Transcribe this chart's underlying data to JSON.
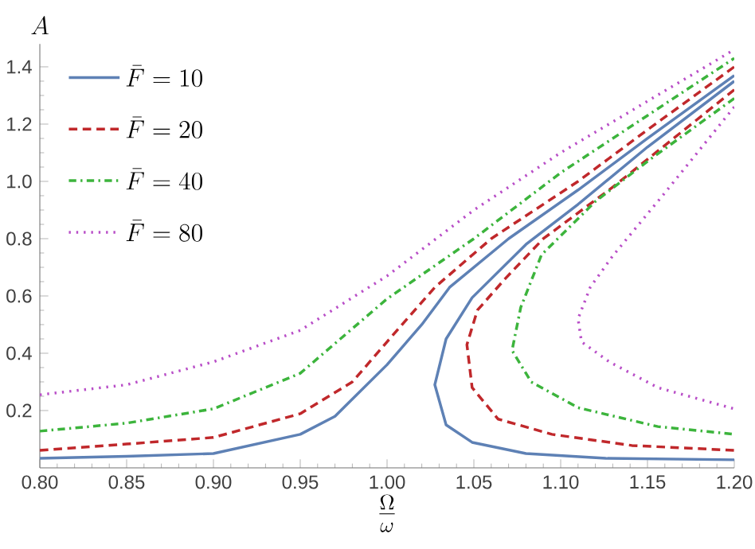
{
  "chart_data": {
    "type": "line",
    "xlabel": "\\frac{\\Omega}{\\omega}",
    "ylabel": "A",
    "xlim": [
      0.8,
      1.2
    ],
    "ylim": [
      0,
      1.48
    ],
    "xticks": [
      {
        "value": 0.8,
        "label": "0.80"
      },
      {
        "value": 0.85,
        "label": "0.85"
      },
      {
        "value": 0.9,
        "label": "0.90"
      },
      {
        "value": 0.95,
        "label": "0.95"
      },
      {
        "value": 1.0,
        "label": "1.00"
      },
      {
        "value": 1.05,
        "label": "1.05"
      },
      {
        "value": 1.1,
        "label": "1.10"
      },
      {
        "value": 1.15,
        "label": "1.15"
      },
      {
        "value": 1.2,
        "label": "1.20"
      }
    ],
    "yticks": [
      {
        "value": 0.2,
        "label": "0.2"
      },
      {
        "value": 0.4,
        "label": "0.4"
      },
      {
        "value": 0.6,
        "label": "0.6"
      },
      {
        "value": 0.8,
        "label": "0.8"
      },
      {
        "value": 1.0,
        "label": "1.0"
      },
      {
        "value": 1.2,
        "label": "1.2"
      },
      {
        "value": 1.4,
        "label": "1.4"
      }
    ],
    "grid": false,
    "legend": "top left",
    "marker": "none",
    "series": [
      {
        "name": "\\bar{F} = 10",
        "color": "#5e81b5",
        "line_style": "solid",
        "x": [
          0.8,
          0.85,
          0.9,
          0.95,
          0.97,
          0.98,
          0.99,
          1.0,
          1.02,
          1.036,
          1.07,
          1.11,
          1.15,
          1.2,
          null,
          1.2,
          1.15,
          1.11,
          1.08,
          1.06,
          1.049,
          1.034,
          1.0275,
          1.034,
          1.049,
          1.08,
          1.126,
          1.2
        ],
        "values": [
          0.033,
          0.04,
          0.05,
          0.117,
          0.18,
          0.24,
          0.3,
          0.36,
          0.5,
          0.63,
          0.8,
          0.97,
          1.15,
          1.37,
          null,
          1.35,
          1.12,
          0.92,
          0.78,
          0.66,
          0.594,
          0.45,
          0.29,
          0.15,
          0.089,
          0.05,
          0.033,
          0.028
        ]
      },
      {
        "name": "\\bar{F} = 20",
        "color": "#c0282b",
        "line_style": "dashed",
        "x": [
          0.8,
          0.85,
          0.9,
          0.95,
          0.98,
          1.0,
          1.0275,
          1.06,
          1.11,
          1.15,
          1.2,
          null,
          1.2,
          1.13,
          1.09,
          1.068,
          1.052,
          1.046,
          1.049,
          1.064,
          1.095,
          1.141,
          1.2
        ],
        "values": [
          0.061,
          0.083,
          0.106,
          0.189,
          0.3,
          0.44,
          0.63,
          0.8,
          1.0,
          1.18,
          1.4,
          null,
          1.32,
          0.98,
          0.8,
          0.66,
          0.55,
          0.43,
          0.28,
          0.17,
          0.117,
          0.078,
          0.061
        ]
      },
      {
        "name": "\\bar{F} = 40",
        "color": "#3cb43c",
        "line_style": "dashdot",
        "x": [
          0.8,
          0.85,
          0.9,
          0.95,
          1.0,
          1.05,
          1.1,
          1.15,
          1.2,
          null,
          1.2,
          1.15,
          1.12,
          1.089,
          1.077,
          1.072,
          1.083,
          1.11,
          1.156,
          1.2
        ],
        "values": [
          0.128,
          0.156,
          0.206,
          0.33,
          0.59,
          0.8,
          1.03,
          1.23,
          1.43,
          null,
          1.29,
          1.07,
          0.93,
          0.744,
          0.56,
          0.41,
          0.3,
          0.21,
          0.144,
          0.117
        ]
      },
      {
        "name": "\\bar{F} = 80",
        "color": "#b94fc8",
        "line_style": "dotted",
        "x": [
          0.8,
          0.85,
          0.9,
          0.95,
          1.0,
          1.05,
          1.1,
          1.15,
          1.2,
          null,
          1.2,
          1.16,
          1.13,
          1.117,
          1.11,
          1.112,
          1.128,
          1.156,
          1.2
        ],
        "values": [
          0.255,
          0.29,
          0.37,
          0.48,
          0.67,
          0.9,
          1.1,
          1.28,
          1.46,
          null,
          1.26,
          0.96,
          0.74,
          0.63,
          0.52,
          0.44,
          0.37,
          0.28,
          0.206
        ]
      }
    ]
  }
}
